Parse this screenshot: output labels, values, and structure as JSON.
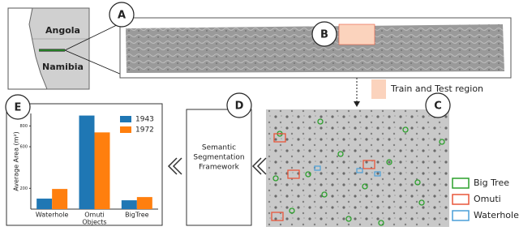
{
  "map": {
    "labels": [
      "Angola",
      "Namibia"
    ]
  },
  "steps": [
    "A",
    "B",
    "C",
    "D",
    "E"
  ],
  "region_label": "Train and Test region",
  "framework_label": [
    "Semantic",
    "Segmentation",
    "Framework"
  ],
  "legend": [
    {
      "name": "Big Tree",
      "color": "#2ca02c"
    },
    {
      "name": "Omuti",
      "color": "#e8563a"
    },
    {
      "name": "Waterhole",
      "color": "#4a9fd8"
    }
  ],
  "chart_data": {
    "type": "bar",
    "categories": [
      "Waterhole",
      "Omuti",
      "BigTree"
    ],
    "x_label": "Objects",
    "y_label": "Average Area (m²)",
    "series": [
      {
        "name": "1943",
        "color": "#1f77b4",
        "values": [
          101,
          900,
          85
        ]
      },
      {
        "name": "1972",
        "color": "#ff7f0e",
        "values": [
          194,
          738,
          116
        ]
      }
    ],
    "ylim": [
      0,
      920
    ],
    "yticks": [
      200,
      600,
      800
    ]
  }
}
